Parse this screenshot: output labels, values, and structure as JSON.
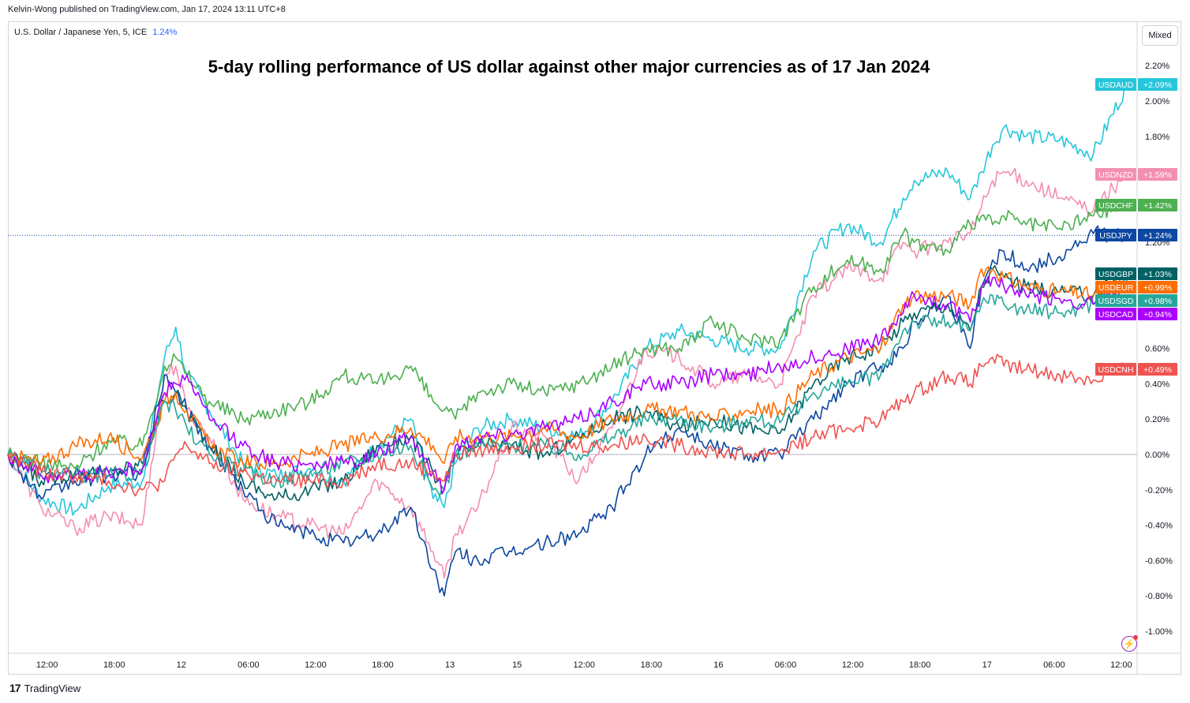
{
  "publisher": "Kelvin-Wong published on TradingView.com, Jan 17, 2024 13:11 UTC+8",
  "symbol": {
    "name": "U.S. Dollar / Japanese Yen, 5, ICE",
    "change": "1.24%"
  },
  "scale_mode": "Mixed",
  "brand": "TradingView",
  "chart_data": {
    "type": "line",
    "title": "5-day rolling performance of US dollar against other major currencies as of 17 Jan 2024",
    "xlabel": "",
    "ylabel": "",
    "ylim": [
      -1.1,
      2.25
    ],
    "y_ticks": [
      "2.20%",
      "2.00%",
      "1.80%",
      "1.20%",
      "0.60%",
      "0.40%",
      "0.20%",
      "0.00%",
      "-0.20%",
      "-0.40%",
      "-0.60%",
      "-0.80%",
      "-1.00%"
    ],
    "y_tick_values": [
      2.2,
      2.0,
      1.8,
      1.2,
      0.6,
      0.4,
      0.2,
      0.0,
      -0.2,
      -0.4,
      -0.6,
      -0.8,
      -1.0
    ],
    "x_ticks": [
      "12:00",
      "18:00",
      "12",
      "06:00",
      "12:00",
      "18:00",
      "13",
      "15",
      "12:00",
      "18:00",
      "16",
      "06:00",
      "12:00",
      "18:00",
      "17",
      "06:00",
      "12:00"
    ],
    "x_tick_positions": [
      3.5,
      9.5,
      15.5,
      21.5,
      27.5,
      33.5,
      39.5,
      45.5,
      51.5,
      57.5,
      63.5,
      69.5,
      75.5,
      81.5,
      87.5,
      93.5,
      99.5
    ],
    "x": [
      0,
      3,
      6,
      9,
      12,
      14,
      15,
      16,
      18,
      21,
      24,
      27,
      30,
      33,
      36,
      38,
      39,
      40,
      42,
      45,
      48,
      51,
      54,
      57,
      60,
      63,
      66,
      69,
      72,
      75,
      78,
      80,
      81,
      84,
      86,
      87,
      88,
      89,
      91,
      94,
      97,
      100
    ],
    "series": [
      {
        "name": "USDAUD",
        "label": "+2.09%",
        "color": "#26c6da",
        "values": [
          0.0,
          -0.25,
          -0.32,
          -0.18,
          -0.15,
          0.55,
          0.72,
          0.45,
          0.25,
          -0.05,
          -0.12,
          -0.08,
          -0.15,
          0.05,
          0.2,
          -0.25,
          -0.3,
          -0.05,
          0.15,
          0.2,
          0.15,
          0.1,
          0.3,
          0.6,
          0.7,
          0.65,
          0.6,
          0.6,
          1.15,
          1.3,
          1.2,
          1.45,
          1.55,
          1.6,
          1.45,
          1.6,
          1.75,
          1.85,
          1.8,
          1.78,
          1.7,
          2.09
        ]
      },
      {
        "name": "USDNZD",
        "label": "+1.59%",
        "color": "#f48fb1",
        "values": [
          0.0,
          -0.3,
          -0.42,
          -0.35,
          -0.4,
          0.45,
          0.5,
          0.25,
          0.1,
          -0.25,
          -0.35,
          -0.4,
          -0.45,
          -0.15,
          -0.3,
          -0.55,
          -0.7,
          -0.45,
          -0.3,
          0.15,
          0.1,
          -0.15,
          0.15,
          0.6,
          0.55,
          0.4,
          0.45,
          0.4,
          0.9,
          1.05,
          1.0,
          1.2,
          1.15,
          1.2,
          1.25,
          1.4,
          1.55,
          1.6,
          1.55,
          1.45,
          1.38,
          1.59
        ]
      },
      {
        "name": "USDCHF",
        "label": "+1.42%",
        "color": "#4caf50",
        "values": [
          0.0,
          -0.05,
          -0.08,
          0.08,
          0.05,
          0.5,
          0.55,
          0.45,
          0.3,
          0.2,
          0.25,
          0.3,
          0.45,
          0.4,
          0.5,
          0.3,
          0.25,
          0.2,
          0.35,
          0.4,
          0.35,
          0.4,
          0.5,
          0.6,
          0.6,
          0.75,
          0.65,
          0.65,
          0.95,
          1.1,
          1.05,
          1.25,
          1.2,
          1.15,
          1.3,
          1.35,
          1.3,
          1.35,
          1.3,
          1.28,
          1.35,
          1.42
        ]
      },
      {
        "name": "USDJPY",
        "label": "+1.24%",
        "color": "#0d47a1",
        "values": [
          0.0,
          -0.25,
          -0.15,
          -0.12,
          -0.1,
          0.45,
          0.35,
          0.25,
          0.05,
          -0.2,
          -0.4,
          -0.45,
          -0.5,
          -0.45,
          -0.3,
          -0.65,
          -0.8,
          -0.55,
          -0.6,
          -0.55,
          -0.5,
          -0.45,
          -0.3,
          0.0,
          0.15,
          0.05,
          0.0,
          0.0,
          0.2,
          0.4,
          0.5,
          0.6,
          0.75,
          0.9,
          0.6,
          0.95,
          1.1,
          1.15,
          1.05,
          1.12,
          1.25,
          1.24
        ]
      },
      {
        "name": "USDGBP",
        "label": "+1.03%",
        "color": "#006064",
        "values": [
          0.0,
          -0.15,
          -0.1,
          -0.1,
          -0.05,
          0.3,
          0.35,
          0.25,
          0.05,
          -0.15,
          -0.25,
          -0.2,
          -0.15,
          0.05,
          0.1,
          -0.1,
          -0.2,
          0.0,
          0.05,
          0.05,
          0.0,
          0.1,
          0.2,
          0.25,
          0.15,
          0.2,
          0.15,
          0.12,
          0.4,
          0.55,
          0.6,
          0.75,
          0.8,
          0.85,
          0.7,
          0.95,
          1.05,
          1.0,
          0.95,
          0.92,
          0.9,
          1.03
        ]
      },
      {
        "name": "USDEUR",
        "label": "+0.99%",
        "color": "#ff6d00",
        "values": [
          0.0,
          -0.05,
          0.05,
          0.1,
          -0.02,
          0.3,
          0.35,
          0.25,
          0.05,
          -0.05,
          -0.05,
          0.0,
          0.05,
          0.1,
          0.15,
          0.05,
          -0.05,
          0.1,
          0.1,
          0.1,
          0.15,
          0.1,
          0.2,
          0.25,
          0.25,
          0.2,
          0.25,
          0.25,
          0.45,
          0.55,
          0.6,
          0.85,
          0.9,
          0.9,
          0.85,
          1.05,
          1.05,
          1.0,
          0.95,
          0.92,
          0.9,
          0.99
        ]
      },
      {
        "name": "USDSGD",
        "label": "+0.98%",
        "color": "#26a69a",
        "values": [
          0.0,
          -0.1,
          -0.12,
          -0.12,
          -0.1,
          0.3,
          0.25,
          0.15,
          0.0,
          -0.1,
          -0.15,
          -0.1,
          -0.05,
          0.0,
          0.05,
          -0.2,
          -0.2,
          0.0,
          0.05,
          0.05,
          0.05,
          0.0,
          0.1,
          0.2,
          0.2,
          0.15,
          0.2,
          0.18,
          0.35,
          0.4,
          0.45,
          0.7,
          0.75,
          0.75,
          0.7,
          0.85,
          0.9,
          0.85,
          0.82,
          0.8,
          0.85,
          0.98
        ]
      },
      {
        "name": "USDCAD",
        "label": "+0.94%",
        "color": "#aa00ff",
        "values": [
          0.0,
          -0.12,
          -0.12,
          -0.1,
          -0.08,
          0.35,
          0.4,
          0.45,
          0.2,
          0.05,
          -0.05,
          -0.05,
          -0.05,
          0.0,
          0.1,
          -0.1,
          -0.2,
          0.05,
          0.1,
          0.12,
          0.15,
          0.2,
          0.3,
          0.4,
          0.4,
          0.45,
          0.45,
          0.5,
          0.55,
          0.6,
          0.65,
          0.8,
          0.9,
          0.85,
          0.75,
          0.95,
          1.0,
          0.95,
          0.9,
          0.88,
          0.85,
          0.94
        ]
      },
      {
        "name": "USDCNH",
        "label": "+0.49%",
        "color": "#ef5350",
        "values": [
          0.0,
          -0.1,
          -0.12,
          -0.15,
          -0.2,
          -0.15,
          0.0,
          0.05,
          -0.05,
          -0.1,
          -0.15,
          -0.15,
          -0.15,
          -0.05,
          -0.05,
          -0.1,
          -0.15,
          0.0,
          0.02,
          0.05,
          0.05,
          0.05,
          0.05,
          0.1,
          0.05,
          0.02,
          0.0,
          0.02,
          0.1,
          0.15,
          0.2,
          0.3,
          0.35,
          0.45,
          0.4,
          0.5,
          0.55,
          0.5,
          0.48,
          0.45,
          0.42,
          0.49
        ]
      }
    ],
    "labels_order": [
      "USDAUD",
      "USDNZD",
      "USDCHF",
      "USDJPY",
      "USDGBP",
      "USDEUR",
      "USDSGD",
      "USDCAD",
      "USDCNH"
    ],
    "grid": false,
    "reference_line": 0.0,
    "price_line": 1.24
  }
}
